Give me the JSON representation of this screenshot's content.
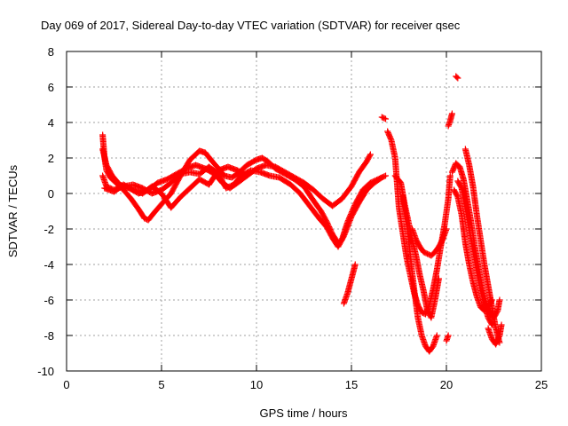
{
  "chart_data": {
    "type": "scatter",
    "title": "Day 069 of 2017, Sidereal Day-to-day VTEC variation (SDTVAR) for receiver qsec",
    "xlabel": "GPS time / hours",
    "ylabel": "SDTVAR / TECUs",
    "xlim": [
      0,
      25
    ],
    "ylim": [
      -10,
      8
    ],
    "xticks": [
      0,
      5,
      10,
      15,
      20,
      25
    ],
    "yticks": [
      -10,
      -8,
      -6,
      -4,
      -2,
      0,
      2,
      4,
      6,
      8
    ],
    "grid": true,
    "legend": "none",
    "marker": "+",
    "color": "#ff0000",
    "series": [
      {
        "name": "track-1",
        "points": [
          [
            1.9,
            3.3
          ],
          [
            2.0,
            2.0
          ],
          [
            2.1,
            1.3
          ],
          [
            2.3,
            0.9
          ],
          [
            2.6,
            0.6
          ],
          [
            3.0,
            0.2
          ],
          [
            3.4,
            -0.3
          ],
          [
            3.8,
            -0.9
          ],
          [
            4.1,
            -1.4
          ],
          [
            4.3,
            -1.5
          ],
          [
            4.6,
            -1.1
          ],
          [
            5.0,
            -0.6
          ],
          [
            5.5,
            0.0
          ],
          [
            6.0,
            1.0
          ],
          [
            6.5,
            1.9
          ],
          [
            7.0,
            2.4
          ],
          [
            7.3,
            2.3
          ],
          [
            7.6,
            1.9
          ],
          [
            8.0,
            1.4
          ],
          [
            8.3,
            1.0
          ],
          [
            8.7,
            0.9
          ],
          [
            9.0,
            1.1
          ],
          [
            9.5,
            1.6
          ],
          [
            10.0,
            1.9
          ],
          [
            10.3,
            2.0
          ],
          [
            10.6,
            1.8
          ],
          [
            11.0,
            1.4
          ],
          [
            11.5,
            1.1
          ],
          [
            12.0,
            0.8
          ],
          [
            12.5,
            0.4
          ],
          [
            13.0,
            -0.4
          ],
          [
            13.4,
            -1.0
          ],
          [
            13.7,
            -1.6
          ],
          [
            14.0,
            -2.3
          ],
          [
            14.3,
            -2.8
          ],
          [
            14.5,
            -2.6
          ],
          [
            14.8,
            -1.6
          ],
          [
            15.2,
            -0.6
          ],
          [
            15.6,
            0.2
          ],
          [
            16.0,
            0.6
          ],
          [
            16.4,
            0.8
          ],
          [
            16.8,
            1.0
          ]
        ]
      },
      {
        "name": "track-2",
        "points": [
          [
            1.9,
            2.5
          ],
          [
            2.1,
            1.6
          ],
          [
            2.4,
            1.0
          ],
          [
            2.8,
            0.5
          ],
          [
            3.3,
            0.3
          ],
          [
            3.8,
            0.0
          ],
          [
            4.3,
            0.2
          ],
          [
            4.8,
            0.6
          ],
          [
            5.3,
            0.8
          ],
          [
            5.8,
            1.1
          ],
          [
            6.3,
            1.4
          ],
          [
            6.8,
            1.6
          ],
          [
            7.3,
            1.4
          ],
          [
            7.8,
            1.1
          ],
          [
            8.2,
            0.6
          ],
          [
            8.6,
            0.3
          ],
          [
            9.0,
            0.6
          ],
          [
            9.5,
            1.0
          ],
          [
            10.0,
            1.4
          ],
          [
            10.5,
            1.6
          ],
          [
            11.0,
            1.5
          ],
          [
            11.5,
            1.2
          ],
          [
            12.0,
            0.9
          ],
          [
            12.5,
            0.6
          ],
          [
            13.0,
            0.2
          ],
          [
            13.5,
            -0.3
          ],
          [
            14.0,
            -0.7
          ],
          [
            14.5,
            -0.3
          ],
          [
            15.0,
            0.4
          ],
          [
            15.4,
            1.2
          ],
          [
            15.8,
            1.8
          ],
          [
            16.0,
            2.2
          ]
        ]
      },
      {
        "name": "track-3",
        "points": [
          [
            1.9,
            1.0
          ],
          [
            2.1,
            0.4
          ],
          [
            2.5,
            0.2
          ],
          [
            3.0,
            0.4
          ],
          [
            3.5,
            0.5
          ],
          [
            4.0,
            0.3
          ],
          [
            4.5,
            0.0
          ],
          [
            5.0,
            0.2
          ],
          [
            5.5,
            0.6
          ],
          [
            6.0,
            1.1
          ],
          [
            6.5,
            1.2
          ],
          [
            7.0,
            1.1
          ],
          [
            7.5,
            1.5
          ],
          [
            8.0,
            1.1
          ],
          [
            8.4,
            0.3
          ],
          [
            8.8,
            0.5
          ],
          [
            9.2,
            1.0
          ],
          [
            9.7,
            1.3
          ],
          [
            10.2,
            1.2
          ],
          [
            10.7,
            1.0
          ],
          [
            11.2,
            0.9
          ],
          [
            11.8,
            0.5
          ],
          [
            12.3,
            0.0
          ],
          [
            12.8,
            -0.7
          ],
          [
            13.3,
            -1.4
          ],
          [
            13.7,
            -1.9
          ],
          [
            14.0,
            -2.5
          ],
          [
            14.3,
            -3.0
          ],
          [
            14.6,
            -2.4
          ],
          [
            15.0,
            -1.3
          ],
          [
            15.4,
            -0.5
          ],
          [
            15.8,
            0.2
          ],
          [
            16.2,
            0.6
          ],
          [
            16.6,
            0.9
          ]
        ]
      },
      {
        "name": "track-4",
        "points": [
          [
            2.0,
            0.3
          ],
          [
            2.5,
            0.1
          ],
          [
            3.0,
            0.5
          ],
          [
            3.5,
            0.2
          ],
          [
            4.0,
            0.0
          ],
          [
            4.5,
            0.4
          ],
          [
            5.0,
            0.0
          ],
          [
            5.5,
            -0.8
          ],
          [
            6.0,
            -0.2
          ],
          [
            6.5,
            0.3
          ],
          [
            7.0,
            0.8
          ],
          [
            7.5,
            0.5
          ],
          [
            8.0,
            1.3
          ],
          [
            8.5,
            1.5
          ],
          [
            9.0,
            1.3
          ],
          [
            9.5,
            1.0
          ]
        ]
      },
      {
        "name": "track-5",
        "points": [
          [
            14.6,
            -6.2
          ],
          [
            14.8,
            -5.6
          ],
          [
            15.0,
            -4.8
          ],
          [
            15.2,
            -4.0
          ]
        ]
      },
      {
        "name": "track-6",
        "points": [
          [
            16.6,
            4.3
          ],
          [
            16.8,
            4.2
          ]
        ]
      },
      {
        "name": "track-7",
        "points": [
          [
            16.9,
            3.5
          ],
          [
            17.1,
            3.0
          ],
          [
            17.3,
            2.0
          ],
          [
            17.4,
            0.6
          ],
          [
            17.5,
            -0.8
          ],
          [
            17.7,
            -2.2
          ],
          [
            17.9,
            -3.6
          ],
          [
            18.1,
            -4.6
          ],
          [
            18.3,
            -5.6
          ],
          [
            18.5,
            -6.3
          ],
          [
            18.7,
            -6.7
          ],
          [
            18.9,
            -6.8
          ],
          [
            19.1,
            -6.3
          ],
          [
            19.3,
            -5.4
          ],
          [
            19.5,
            -4.3
          ],
          [
            19.7,
            -3.0
          ],
          [
            19.9,
            -1.8
          ],
          [
            20.1,
            -0.3
          ],
          [
            20.2,
            1.0
          ]
        ]
      },
      {
        "name": "track-8",
        "points": [
          [
            17.7,
            -0.1
          ],
          [
            17.9,
            -1.5
          ],
          [
            18.1,
            -3.5
          ],
          [
            18.3,
            -5.4
          ],
          [
            18.5,
            -7.0
          ],
          [
            18.7,
            -8.0
          ],
          [
            18.9,
            -8.6
          ],
          [
            19.1,
            -8.9
          ],
          [
            19.3,
            -8.6
          ],
          [
            19.5,
            -8.0
          ]
        ]
      },
      {
        "name": "track-9",
        "points": [
          [
            17.3,
            1.0
          ],
          [
            17.6,
            0.6
          ],
          [
            17.8,
            -0.6
          ],
          [
            18.0,
            -1.6
          ],
          [
            18.2,
            -2.6
          ],
          [
            18.4,
            -3.5
          ],
          [
            18.6,
            -4.6
          ],
          [
            18.8,
            -5.5
          ],
          [
            19.0,
            -6.6
          ],
          [
            19.2,
            -7.0
          ],
          [
            19.4,
            -6.0
          ],
          [
            19.6,
            -4.8
          ]
        ]
      },
      {
        "name": "track-10",
        "points": [
          [
            18.2,
            -2.0
          ],
          [
            18.4,
            -2.6
          ],
          [
            18.6,
            -3.0
          ],
          [
            18.8,
            -3.3
          ],
          [
            19.0,
            -3.4
          ],
          [
            19.2,
            -3.5
          ],
          [
            19.4,
            -3.3
          ],
          [
            19.6,
            -3.0
          ],
          [
            19.8,
            -2.6
          ],
          [
            20.0,
            -2.0
          ]
        ]
      },
      {
        "name": "track-11",
        "points": [
          [
            20.0,
            -8.3
          ],
          [
            20.1,
            -8.0
          ]
        ]
      },
      {
        "name": "track-12",
        "points": [
          [
            20.1,
            3.8
          ],
          [
            20.2,
            4.1
          ],
          [
            20.3,
            4.5
          ]
        ]
      },
      {
        "name": "track-13",
        "points": [
          [
            20.5,
            6.6
          ],
          [
            20.6,
            6.5
          ]
        ]
      },
      {
        "name": "track-14",
        "points": [
          [
            20.3,
            1.2
          ],
          [
            20.5,
            1.7
          ],
          [
            20.7,
            1.5
          ],
          [
            20.9,
            0.8
          ],
          [
            21.1,
            -0.4
          ],
          [
            21.3,
            -1.6
          ],
          [
            21.5,
            -3.0
          ],
          [
            21.7,
            -4.2
          ],
          [
            21.9,
            -5.4
          ],
          [
            22.1,
            -6.3
          ],
          [
            22.3,
            -6.8
          ],
          [
            22.5,
            -7.0
          ],
          [
            22.7,
            -6.6
          ],
          [
            22.8,
            -6.0
          ]
        ]
      },
      {
        "name": "track-15",
        "points": [
          [
            20.4,
            0.2
          ],
          [
            20.6,
            -0.2
          ],
          [
            20.8,
            -1.2
          ],
          [
            21.0,
            -2.8
          ],
          [
            21.2,
            -4.0
          ],
          [
            21.4,
            -5.0
          ],
          [
            21.6,
            -5.8
          ],
          [
            21.8,
            -6.4
          ],
          [
            22.0,
            -6.6
          ],
          [
            22.2,
            -6.4
          ],
          [
            22.4,
            -6.0
          ]
        ]
      },
      {
        "name": "track-16",
        "points": [
          [
            20.6,
            0.7
          ],
          [
            20.8,
            0.3
          ],
          [
            21.0,
            -0.8
          ],
          [
            21.2,
            -2.0
          ],
          [
            21.4,
            -3.2
          ],
          [
            21.6,
            -4.4
          ],
          [
            21.8,
            -5.4
          ],
          [
            22.0,
            -6.2
          ],
          [
            22.2,
            -7.0
          ],
          [
            22.4,
            -7.4
          ]
        ]
      },
      {
        "name": "track-17",
        "points": [
          [
            21.0,
            2.5
          ],
          [
            21.2,
            1.6
          ],
          [
            21.4,
            0.4
          ],
          [
            21.6,
            -1.2
          ],
          [
            21.8,
            -2.6
          ],
          [
            22.0,
            -4.0
          ],
          [
            22.2,
            -5.2
          ],
          [
            22.4,
            -6.4
          ],
          [
            22.6,
            -7.6
          ],
          [
            22.8,
            -8.4
          ]
        ]
      },
      {
        "name": "track-18",
        "points": [
          [
            22.2,
            -7.6
          ],
          [
            22.4,
            -8.2
          ],
          [
            22.6,
            -8.5
          ],
          [
            22.8,
            -8.0
          ],
          [
            22.9,
            -7.4
          ]
        ]
      }
    ]
  }
}
